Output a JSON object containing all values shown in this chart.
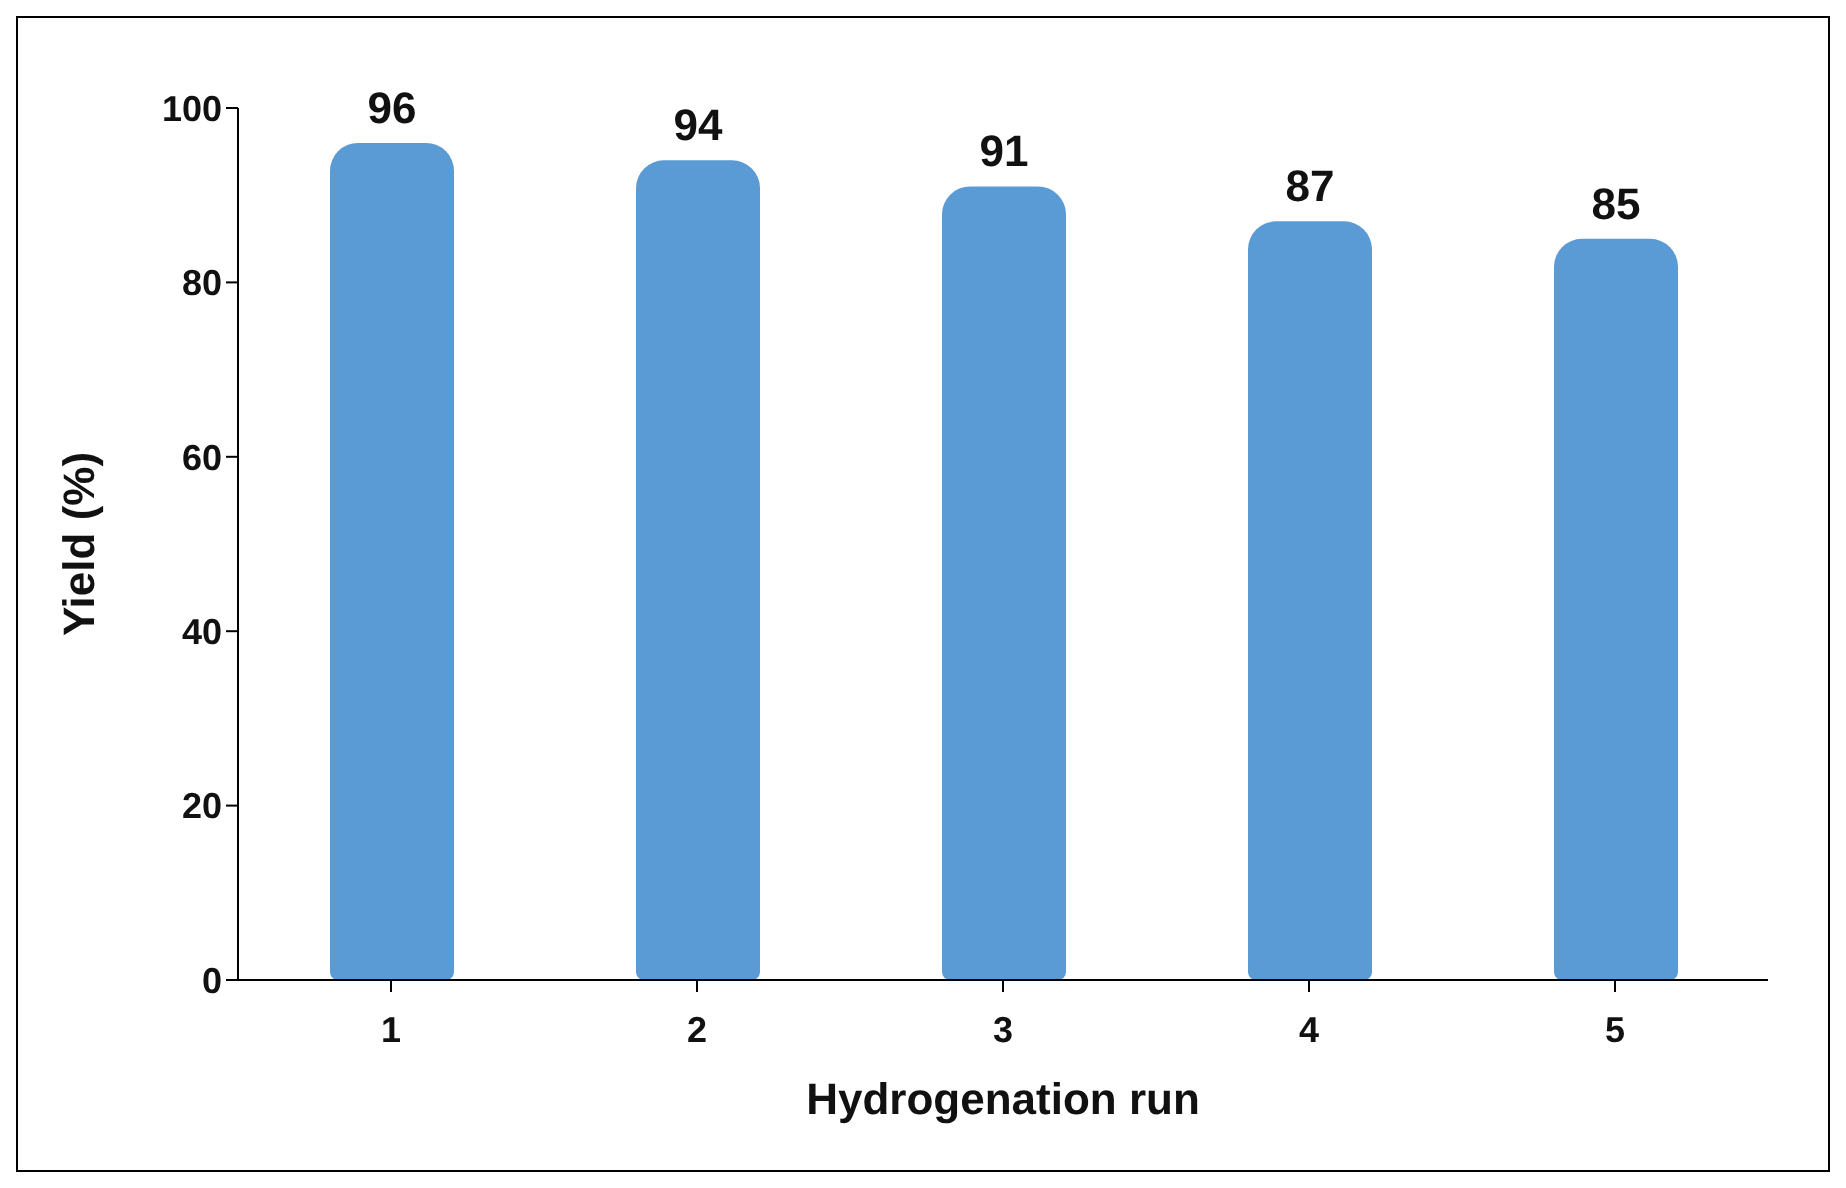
{
  "chart_data": {
    "type": "bar",
    "xlabel": "Hydrogenation run",
    "ylabel": "Yield (%)",
    "categories": [
      "1",
      "2",
      "3",
      "4",
      "5"
    ],
    "values": [
      96,
      94,
      91,
      87,
      85
    ],
    "color": "#5b9bd5",
    "ylim": [
      0,
      100
    ],
    "yticks": [
      0,
      20,
      40,
      60,
      80,
      100
    ],
    "data_labels": true,
    "grid": false
  }
}
